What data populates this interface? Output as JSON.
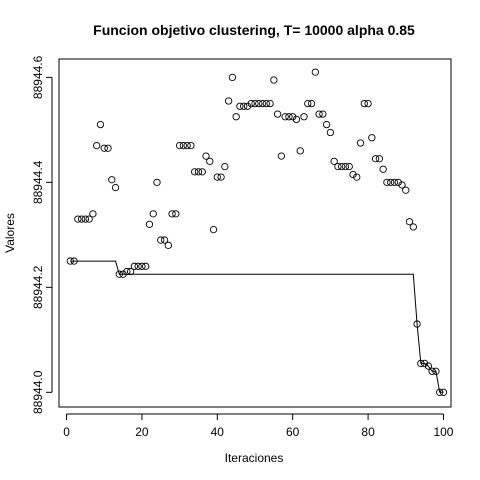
{
  "chart_data": {
    "type": "scatter",
    "title": "Funcion objetivo clustering, T= 10000 alpha 0.85",
    "xlabel": "Iteraciones",
    "ylabel": "Valores",
    "xlim": [
      -2,
      102
    ],
    "ylim": [
      88943.972,
      88944.635
    ],
    "x_ticks": [
      0,
      20,
      40,
      60,
      80,
      100
    ],
    "y_ticks": [
      88944.0,
      88944.2,
      88944.4,
      88944.6
    ],
    "y_tick_labels": [
      "88944.0",
      "88944.2",
      "88944.4",
      "88944.6"
    ],
    "grid": false,
    "series": [
      {
        "style": "points",
        "x": [
          1,
          2,
          3,
          4,
          5,
          6,
          7,
          8,
          9,
          10,
          11,
          12,
          13,
          14,
          15,
          16,
          17,
          18,
          19,
          20,
          21,
          22,
          23,
          24,
          25,
          26,
          27,
          28,
          29,
          30,
          31,
          32,
          33,
          34,
          35,
          36,
          37,
          38,
          39,
          40,
          41,
          42,
          43,
          44,
          45,
          46,
          47,
          48,
          49,
          50,
          51,
          52,
          53,
          54,
          55,
          56,
          57,
          58,
          59,
          60,
          61,
          62,
          63,
          64,
          65,
          66,
          67,
          68,
          69,
          70,
          71,
          72,
          73,
          74,
          75,
          76,
          77,
          78,
          79,
          80,
          81,
          82,
          83,
          84,
          85,
          86,
          87,
          88,
          89,
          90,
          91,
          92,
          93,
          94,
          95,
          96,
          97,
          98,
          99,
          100
        ],
        "y": [
          88944.25,
          88944.25,
          88944.33,
          88944.33,
          88944.33,
          88944.33,
          88944.34,
          88944.47,
          88944.51,
          88944.465,
          88944.465,
          88944.405,
          88944.39,
          88944.225,
          88944.225,
          88944.23,
          88944.23,
          88944.24,
          88944.24,
          88944.24,
          88944.24,
          88944.32,
          88944.34,
          88944.4,
          88944.29,
          88944.29,
          88944.28,
          88944.34,
          88944.34,
          88944.47,
          88944.47,
          88944.47,
          88944.47,
          88944.42,
          88944.42,
          88944.42,
          88944.45,
          88944.44,
          88944.31,
          88944.41,
          88944.41,
          88944.43,
          88944.555,
          88944.6,
          88944.525,
          88944.545,
          88944.545,
          88944.545,
          88944.55,
          88944.55,
          88944.55,
          88944.55,
          88944.55,
          88944.55,
          88944.595,
          88944.53,
          88944.45,
          88944.525,
          88944.525,
          88944.525,
          88944.52,
          88944.46,
          88944.525,
          88944.55,
          88944.55,
          88944.61,
          88944.53,
          88944.53,
          88944.51,
          88944.495,
          88944.44,
          88944.43,
          88944.43,
          88944.43,
          88944.43,
          88944.415,
          88944.41,
          88944.475,
          88944.55,
          88944.55,
          88944.485,
          88944.445,
          88944.445,
          88944.425,
          88944.4,
          88944.4,
          88944.4,
          88944.4,
          88944.395,
          88944.385,
          88944.325,
          88944.315,
          88944.13,
          88944.055,
          88944.055,
          88944.05,
          88944.04,
          88944.04,
          88944.0,
          88944.0
        ]
      },
      {
        "style": "line",
        "x": [
          1,
          2,
          3,
          4,
          5,
          6,
          7,
          8,
          9,
          10,
          11,
          12,
          13,
          14,
          15,
          16,
          17,
          18,
          19,
          20,
          21,
          22,
          23,
          24,
          25,
          26,
          27,
          28,
          29,
          30,
          31,
          32,
          33,
          34,
          35,
          36,
          37,
          38,
          39,
          40,
          41,
          42,
          43,
          44,
          45,
          46,
          47,
          48,
          49,
          50,
          51,
          52,
          53,
          54,
          55,
          56,
          57,
          58,
          59,
          60,
          61,
          62,
          63,
          64,
          65,
          66,
          67,
          68,
          69,
          70,
          71,
          72,
          73,
          74,
          75,
          76,
          77,
          78,
          79,
          80,
          81,
          82,
          83,
          84,
          85,
          86,
          87,
          88,
          89,
          90,
          91,
          92,
          93,
          94,
          95,
          96,
          97,
          98,
          99,
          100
        ],
        "y": [
          88944.25,
          88944.25,
          88944.25,
          88944.25,
          88944.25,
          88944.25,
          88944.25,
          88944.25,
          88944.25,
          88944.25,
          88944.25,
          88944.25,
          88944.25,
          88944.225,
          88944.225,
          88944.225,
          88944.225,
          88944.225,
          88944.225,
          88944.225,
          88944.225,
          88944.225,
          88944.225,
          88944.225,
          88944.225,
          88944.225,
          88944.225,
          88944.225,
          88944.225,
          88944.225,
          88944.225,
          88944.225,
          88944.225,
          88944.225,
          88944.225,
          88944.225,
          88944.225,
          88944.225,
          88944.225,
          88944.225,
          88944.225,
          88944.225,
          88944.225,
          88944.225,
          88944.225,
          88944.225,
          88944.225,
          88944.225,
          88944.225,
          88944.225,
          88944.225,
          88944.225,
          88944.225,
          88944.225,
          88944.225,
          88944.225,
          88944.225,
          88944.225,
          88944.225,
          88944.225,
          88944.225,
          88944.225,
          88944.225,
          88944.225,
          88944.225,
          88944.225,
          88944.225,
          88944.225,
          88944.225,
          88944.225,
          88944.225,
          88944.225,
          88944.225,
          88944.225,
          88944.225,
          88944.225,
          88944.225,
          88944.225,
          88944.225,
          88944.225,
          88944.225,
          88944.225,
          88944.225,
          88944.225,
          88944.225,
          88944.225,
          88944.225,
          88944.225,
          88944.225,
          88944.225,
          88944.225,
          88944.225,
          88944.13,
          88944.055,
          88944.055,
          88944.05,
          88944.04,
          88944.04,
          88944.0,
          88944.0
        ]
      }
    ]
  }
}
